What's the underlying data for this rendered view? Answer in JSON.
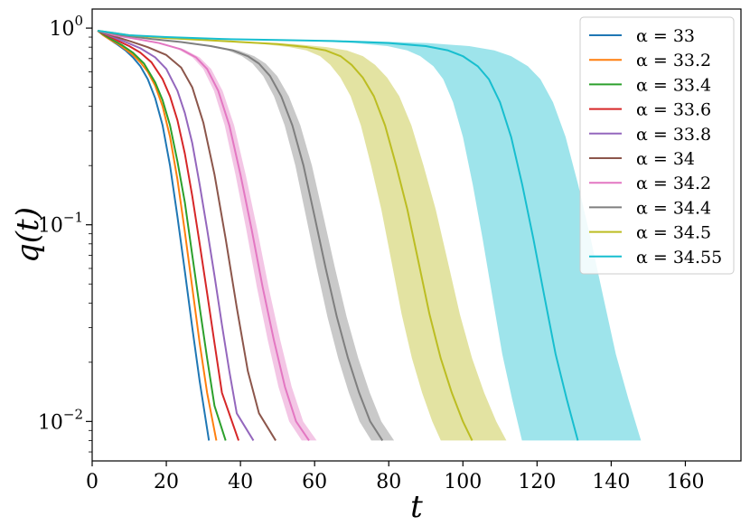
{
  "chart_data": {
    "type": "line",
    "title": "",
    "xlabel": "t",
    "ylabel": "q(t)",
    "xscale": "linear",
    "yscale": "log",
    "xlim": [
      0,
      175
    ],
    "ylim": [
      0.0063,
      1.25
    ],
    "xticks": [
      0,
      20,
      40,
      60,
      80,
      100,
      120,
      140,
      160
    ],
    "xtick_labels": [
      "0",
      "20",
      "40",
      "60",
      "80",
      "100",
      "120",
      "140",
      "160"
    ],
    "yticks": [
      0.01,
      0.1,
      1
    ],
    "ytick_labels": [
      {
        "base": "10",
        "exp": "−2"
      },
      {
        "base": "10",
        "exp": "−1"
      },
      {
        "base": "10",
        "exp": "0"
      }
    ],
    "grid": false,
    "legend_position": "top-right",
    "series": [
      {
        "name": "α = 33",
        "color": "#1f77b4",
        "x": [
          1.5,
          3,
          5,
          7,
          9,
          11,
          13,
          15,
          17,
          19,
          21,
          23,
          25,
          27,
          29,
          31.5
        ],
        "y": [
          0.97,
          0.92,
          0.87,
          0.82,
          0.77,
          0.71,
          0.64,
          0.55,
          0.44,
          0.32,
          0.2,
          0.11,
          0.058,
          0.03,
          0.016,
          0.008
        ],
        "band": 0
      },
      {
        "name": "α = 33.2",
        "color": "#ff7f0e",
        "x": [
          1.5,
          3,
          5,
          7,
          9,
          11,
          13,
          15,
          17,
          19,
          21,
          23,
          25,
          27,
          29,
          31,
          33.5
        ],
        "y": [
          0.97,
          0.92,
          0.87,
          0.83,
          0.78,
          0.73,
          0.67,
          0.6,
          0.51,
          0.4,
          0.28,
          0.17,
          0.092,
          0.048,
          0.025,
          0.014,
          0.008
        ],
        "band": 0
      },
      {
        "name": "α = 33.4",
        "color": "#2ca02c",
        "x": [
          1.5,
          3,
          5,
          8,
          11,
          14,
          17,
          19,
          21,
          23,
          25,
          27,
          29,
          31,
          33,
          36
        ],
        "y": [
          0.97,
          0.93,
          0.88,
          0.82,
          0.75,
          0.66,
          0.53,
          0.43,
          0.32,
          0.21,
          0.13,
          0.07,
          0.038,
          0.021,
          0.012,
          0.008
        ],
        "band": 0
      },
      {
        "name": "α = 33.6",
        "color": "#d62728",
        "x": [
          1.5,
          4,
          7,
          10,
          13,
          16,
          19,
          21,
          23,
          25,
          27,
          29,
          31,
          33,
          35,
          39.5
        ],
        "y": [
          0.97,
          0.92,
          0.86,
          0.81,
          0.75,
          0.67,
          0.55,
          0.45,
          0.34,
          0.23,
          0.14,
          0.08,
          0.045,
          0.025,
          0.014,
          0.008
        ],
        "band": 0
      },
      {
        "name": "α = 33.8",
        "color": "#9467bd",
        "x": [
          1.5,
          5,
          9,
          13,
          17,
          20,
          23,
          25,
          27,
          29,
          31,
          33,
          35,
          37,
          39,
          43.5
        ],
        "y": [
          0.97,
          0.91,
          0.85,
          0.79,
          0.71,
          0.62,
          0.48,
          0.37,
          0.26,
          0.16,
          0.095,
          0.055,
          0.031,
          0.018,
          0.011,
          0.008
        ],
        "band": 0
      },
      {
        "name": "α = 34",
        "color": "#8c564b",
        "x": [
          1.5,
          5,
          10,
          15,
          20,
          24,
          27,
          30,
          33,
          36,
          39,
          42,
          45,
          49.5
        ],
        "y": [
          0.97,
          0.92,
          0.86,
          0.8,
          0.73,
          0.63,
          0.5,
          0.33,
          0.18,
          0.085,
          0.038,
          0.018,
          0.011,
          0.008
        ],
        "band": 0
      },
      {
        "name": "α = 34.2",
        "color": "#e377c2",
        "x": [
          1.5,
          6,
          12,
          18,
          24,
          28,
          31,
          34,
          37,
          40,
          43,
          46,
          49,
          52,
          55,
          58.5
        ],
        "y": [
          0.97,
          0.92,
          0.88,
          0.84,
          0.78,
          0.71,
          0.62,
          0.48,
          0.32,
          0.18,
          0.095,
          0.048,
          0.026,
          0.015,
          0.01,
          0.008
        ],
        "band": 0.035
      },
      {
        "name": "α = 34.4",
        "color": "#7f7f7f",
        "x": [
          1.5,
          8,
          16,
          24,
          32,
          38,
          42,
          45,
          48,
          51,
          54,
          57,
          60,
          63,
          66,
          69,
          72,
          75,
          78.3
        ],
        "y": [
          0.97,
          0.92,
          0.88,
          0.85,
          0.81,
          0.77,
          0.72,
          0.66,
          0.57,
          0.45,
          0.32,
          0.2,
          0.11,
          0.06,
          0.034,
          0.021,
          0.014,
          0.01,
          0.008
        ],
        "band": 0.04
      },
      {
        "name": "α = 34.5",
        "color": "#bcbd22",
        "x": [
          1.5,
          10,
          20,
          30,
          40,
          50,
          58,
          63,
          67,
          70,
          73,
          76,
          79,
          82,
          85,
          88,
          91,
          94,
          97,
          100,
          102.5
        ],
        "y": [
          0.97,
          0.92,
          0.89,
          0.87,
          0.85,
          0.83,
          0.8,
          0.77,
          0.72,
          0.65,
          0.56,
          0.45,
          0.32,
          0.2,
          0.12,
          0.065,
          0.035,
          0.021,
          0.014,
          0.01,
          0.008
        ],
        "band": 0.09
      },
      {
        "name": "α = 34.55",
        "color": "#17becf",
        "x": [
          1.5,
          10,
          20,
          35,
          50,
          65,
          80,
          90,
          96,
          100,
          104,
          107,
          110,
          113,
          116,
          119,
          122,
          125,
          128,
          131
        ],
        "y": [
          0.97,
          0.92,
          0.9,
          0.88,
          0.87,
          0.86,
          0.84,
          0.81,
          0.77,
          0.72,
          0.64,
          0.55,
          0.42,
          0.28,
          0.16,
          0.085,
          0.043,
          0.022,
          0.013,
          0.008
        ],
        "band": 0.13
      }
    ]
  }
}
